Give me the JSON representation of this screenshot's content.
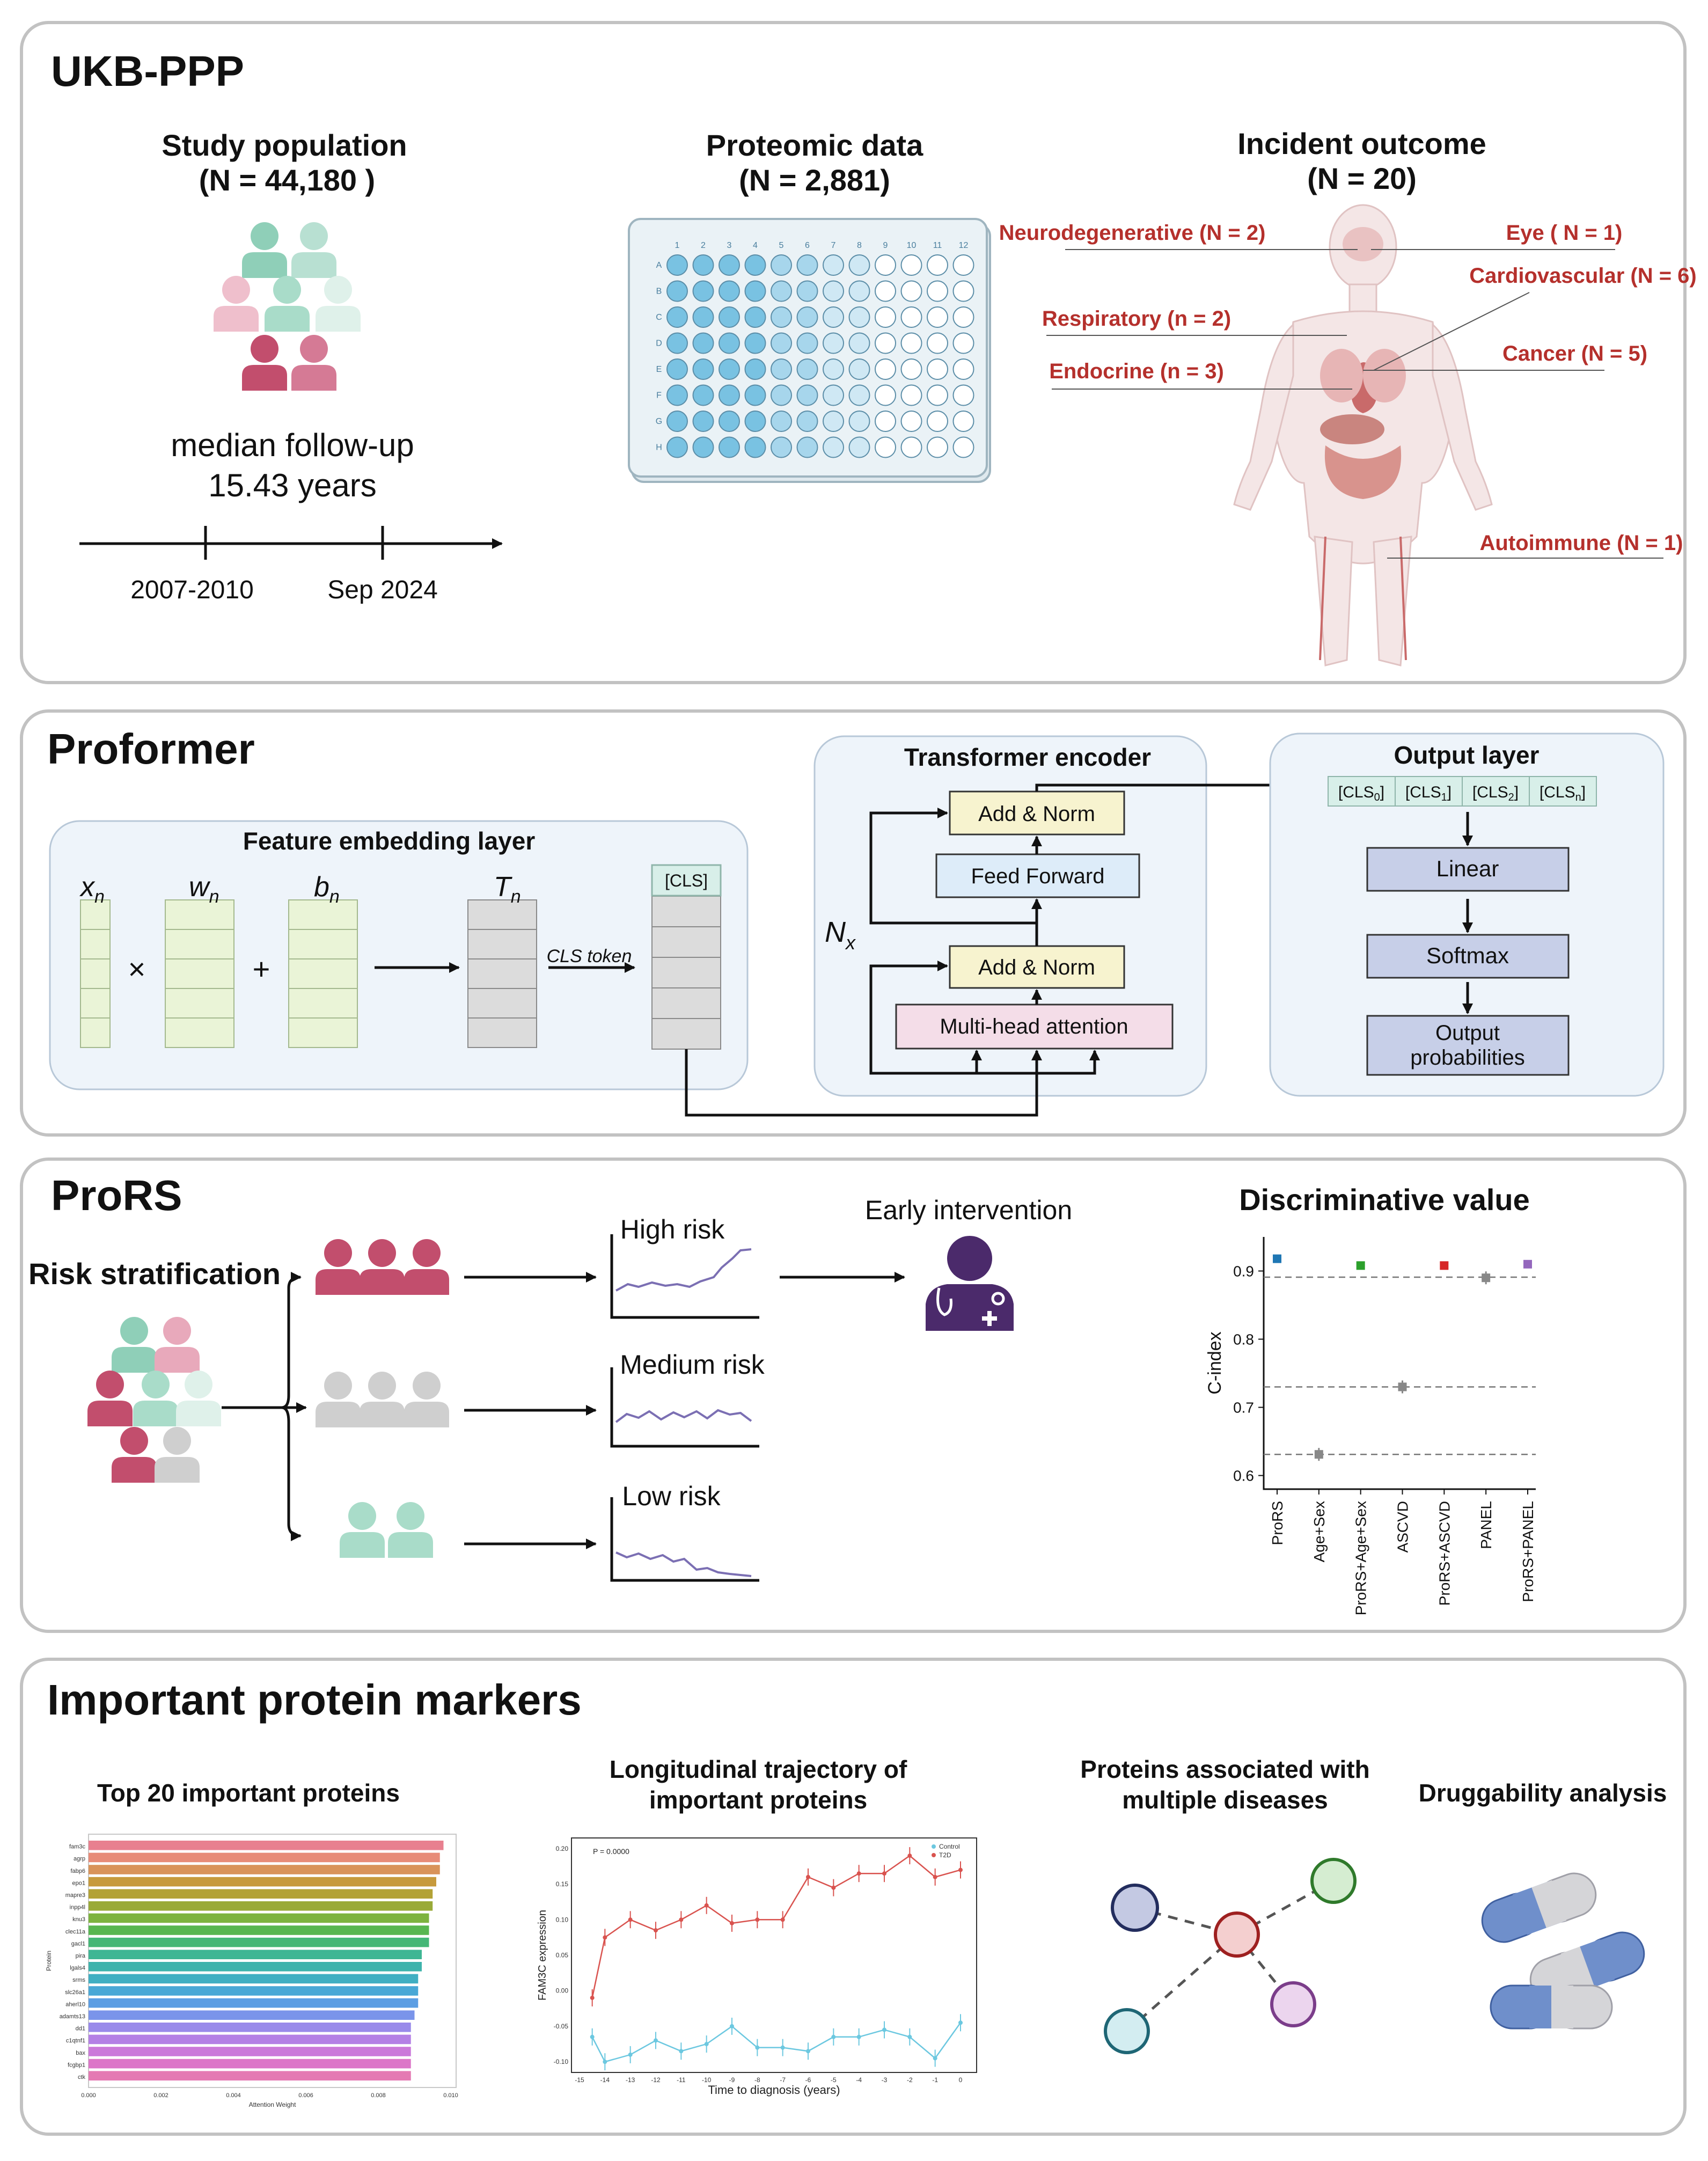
{
  "section_ukb": {
    "title": "UKB-PPP",
    "study_population": {
      "label": "Study population",
      "n": "(N =  44,180 )"
    },
    "follow_up": {
      "line1": "median follow-up",
      "line2": "15.43 years"
    },
    "timeline": {
      "start": "2007-2010",
      "end": "Sep 2024"
    },
    "proteomic": {
      "label": "Proteomic data",
      "n": "(N = 2,881)"
    },
    "plate": {
      "columns": [
        "1",
        "2",
        "3",
        "4",
        "5",
        "6",
        "7",
        "8",
        "9",
        "10",
        "11",
        "12"
      ],
      "rows": [
        "A",
        "B",
        "C",
        "D",
        "E",
        "F",
        "G",
        "H"
      ]
    },
    "outcome": {
      "label": "Incident outcome",
      "n": "(N = 20)"
    },
    "diseases": {
      "neuro": "Neurodegenerative (N = 2)",
      "eye": "Eye ( N = 1)",
      "cardio": "Cardiovascular (N = 6)",
      "resp": "Respiratory (n = 2)",
      "cancer": "Cancer (N = 5)",
      "endo": "Endocrine (n = 3)",
      "auto": "Autoimmune (N = 1)"
    },
    "colors": {
      "disease_text": "#b5302c",
      "teal_person": "#8fcfb8",
      "pink_person": "#c24e6d",
      "well_fill": "#7cc3e3"
    }
  },
  "section_proformer": {
    "title": "Proformer",
    "feature_embedding": {
      "label": "Feature embedding layer",
      "x": "x",
      "w": "w",
      "b": "b",
      "t": "T",
      "sub": "n",
      "times": "×",
      "plus": "+",
      "cls_token": "CLS token",
      "cls_box": "[CLS]"
    },
    "encoder": {
      "label": "Transformer encoder",
      "add_norm": "Add & Norm",
      "feed_forward": "Feed Forward",
      "mha": "Multi-head attention",
      "nx": "N",
      "nx_sub": "x"
    },
    "output": {
      "label": "Output layer",
      "cls": [
        {
          "base": "[CLS",
          "sub": "0",
          "end": "]"
        },
        {
          "base": "[CLS",
          "sub": "1",
          "end": "]"
        },
        {
          "base": "[CLS",
          "sub": "2",
          "end": "]"
        },
        {
          "base": "[CLS",
          "sub": "n",
          "end": "]"
        }
      ],
      "linear": "Linear",
      "softmax": "Softmax",
      "probs1": "Output",
      "probs2": "probabilities"
    }
  },
  "section_prors": {
    "title": "ProRS",
    "risk_strat": "Risk stratification",
    "high": "High risk",
    "medium": "Medium risk",
    "low": "Low risk",
    "early": "Early intervention",
    "colors": {
      "high": "#c24e6d",
      "medium": "#cfcfcf",
      "low": "#a9dcc9",
      "trend": "#7b6fb3",
      "doctor": "#4b2a6b"
    }
  },
  "chart_data": {
    "type": "scatter",
    "title": "Discriminative value",
    "xlabel": "",
    "ylabel": "C-index",
    "categories": [
      "ProRS",
      "Age+Sex",
      "ProRS+Age+Sex",
      "ASCVD",
      "ProRS+ASCVD",
      "PANEL",
      "ProRS+PANEL"
    ],
    "values": [
      0.918,
      0.631,
      0.908,
      0.73,
      0.908,
      0.89,
      0.91
    ],
    "colors": [
      "#1f77b4",
      "#888888",
      "#2ca02c",
      "#888888",
      "#d62728",
      "#888888",
      "#9467bd"
    ],
    "ylim": [
      0.58,
      0.95
    ],
    "yticks": [
      "0.9",
      "0.8",
      "0.7",
      "0.6"
    ],
    "reference_lines": [
      0.891,
      0.73,
      0.631
    ],
    "grid": false
  },
  "section_markers": {
    "title": "Important protein markers",
    "top20": {
      "title": "Top 20 important proteins"
    },
    "trajectory": {
      "title1": "Longitudinal trajectory  of",
      "title2": "important proteins"
    },
    "multi": {
      "title1": "Proteins associated with",
      "title2": "multiple diseases"
    },
    "drug": {
      "title": "Druggability analysis"
    }
  },
  "mini_bar": {
    "type": "bar",
    "ylabel": "Protein",
    "xlabel": "Attention Weight",
    "categories": [
      "fam3c",
      "agrp",
      "fabp6",
      "epo1",
      "mapre3",
      "inpp4l",
      "knu3",
      "clec11a",
      "gacl1",
      "pira",
      "lgals4",
      "srms",
      "slc26a1",
      "aherl10",
      "adamts13",
      "dd1",
      "c1qtnf1",
      "bax",
      "fcgbp1",
      "ctk"
    ],
    "values": [
      0.0098,
      0.0097,
      0.0097,
      0.0096,
      0.0095,
      0.0095,
      0.0094,
      0.0094,
      0.0094,
      0.0092,
      0.0092,
      0.0091,
      0.0091,
      0.0091,
      0.009,
      0.0089,
      0.0089,
      0.0089,
      0.0089,
      0.0089
    ],
    "xticks": [
      "0.000",
      "0.002",
      "0.004",
      "0.006",
      "0.008",
      "0.010"
    ],
    "xlim": [
      0,
      0.01
    ]
  },
  "mini_line": {
    "type": "line",
    "xlabel": "Time to diagnosis (years)",
    "ylabel": "FAM3C expression",
    "annotation": "P = 0.0000",
    "x": [
      -14.5,
      -14,
      -13,
      -12,
      -11,
      -10,
      -9,
      -8,
      -7,
      -6,
      -5,
      -4,
      -3,
      -2,
      -1,
      0
    ],
    "series": [
      {
        "name": "Control",
        "color": "#6cc8e0",
        "values": [
          -0.065,
          -0.1,
          -0.09,
          -0.07,
          -0.085,
          -0.075,
          -0.05,
          -0.08,
          -0.08,
          -0.085,
          -0.065,
          -0.065,
          -0.055,
          -0.065,
          -0.095,
          -0.045
        ]
      },
      {
        "name": "T2D",
        "color": "#d9534f",
        "values": [
          -0.01,
          0.075,
          0.1,
          0.085,
          0.1,
          0.12,
          0.095,
          0.1,
          0.1,
          0.16,
          0.145,
          0.165,
          0.165,
          0.19,
          0.16,
          0.17
        ]
      }
    ],
    "xticks": [
      "-15",
      "-14",
      "-13",
      "-12",
      "-11",
      "-10",
      "-9",
      "-8",
      "-7",
      "-6",
      "-5",
      "-4",
      "-3",
      "-2",
      "-1",
      "0"
    ],
    "yticks": [
      "0.20",
      "0.15",
      "0.10",
      "0.05",
      "0.00",
      "-0.05",
      "-0.10"
    ],
    "ylim": [
      -0.115,
      0.215
    ]
  }
}
